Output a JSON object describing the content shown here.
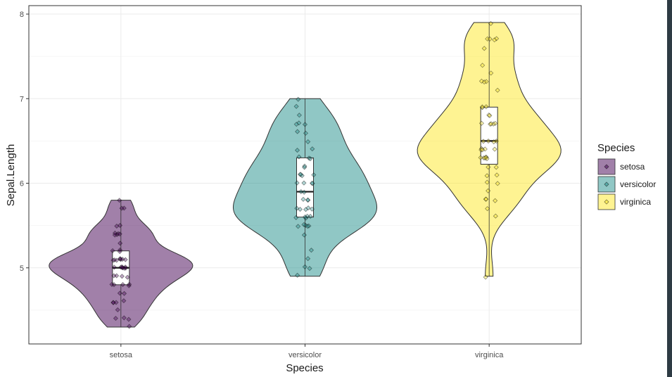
{
  "chart_data": {
    "type": "violin",
    "title": "",
    "xlabel": "Species",
    "ylabel": "Sepal.Length",
    "ylim": [
      4.1,
      8.1
    ],
    "yticks": [
      5,
      6,
      7,
      8
    ],
    "grid": true,
    "legend": {
      "title": "Species",
      "position": "right"
    },
    "categories": [
      "setosa",
      "versicolor",
      "virginica"
    ],
    "series": [
      {
        "name": "setosa",
        "color": "#440154",
        "min": 4.3,
        "q1": 4.8,
        "median": 5.0,
        "q3": 5.2,
        "max": 5.8,
        "points": [
          5.1,
          4.9,
          4.7,
          4.6,
          5.0,
          5.4,
          4.6,
          5.0,
          4.4,
          4.9,
          5.4,
          4.8,
          4.8,
          4.3,
          5.8,
          5.7,
          5.4,
          5.1,
          5.7,
          5.1,
          5.4,
          5.1,
          4.6,
          5.1,
          4.8,
          5.0,
          5.0,
          5.2,
          5.2,
          4.7,
          4.8,
          5.4,
          5.2,
          5.5,
          4.9,
          5.0,
          5.5,
          4.9,
          4.4,
          5.1,
          5.0,
          4.5,
          4.4,
          5.0,
          5.1,
          4.8,
          5.1,
          4.6,
          5.3,
          5.0
        ]
      },
      {
        "name": "versicolor",
        "color": "#21908C",
        "min": 4.9,
        "q1": 5.6,
        "median": 5.9,
        "q3": 6.3,
        "max": 7.0,
        "points": [
          7.0,
          6.4,
          6.9,
          5.5,
          6.5,
          5.7,
          6.3,
          4.9,
          6.6,
          5.2,
          5.0,
          5.9,
          6.0,
          6.1,
          5.6,
          6.7,
          5.6,
          5.8,
          6.2,
          5.6,
          5.9,
          6.1,
          6.3,
          6.1,
          6.4,
          6.6,
          6.8,
          6.7,
          6.0,
          5.7,
          5.5,
          5.5,
          5.8,
          6.0,
          5.4,
          6.0,
          6.7,
          6.3,
          5.6,
          5.5,
          5.5,
          6.1,
          5.8,
          5.0,
          5.6,
          5.7,
          5.7,
          6.2,
          5.1,
          5.7
        ]
      },
      {
        "name": "virginica",
        "color": "#FDE725",
        "min": 4.9,
        "q1": 6.225,
        "median": 6.5,
        "q3": 6.9,
        "max": 7.9,
        "points": [
          6.3,
          5.8,
          7.1,
          6.3,
          6.5,
          7.6,
          4.9,
          7.3,
          6.7,
          7.2,
          6.5,
          6.4,
          6.8,
          5.7,
          5.8,
          6.4,
          6.5,
          7.7,
          7.7,
          6.0,
          6.9,
          5.6,
          7.7,
          6.3,
          6.7,
          7.2,
          6.2,
          6.1,
          6.4,
          7.2,
          7.4,
          7.9,
          6.4,
          6.3,
          6.1,
          7.7,
          6.3,
          6.4,
          6.0,
          6.9,
          6.7,
          6.9,
          5.8,
          6.8,
          6.7,
          6.7,
          6.3,
          6.5,
          6.2,
          5.9
        ]
      }
    ]
  }
}
